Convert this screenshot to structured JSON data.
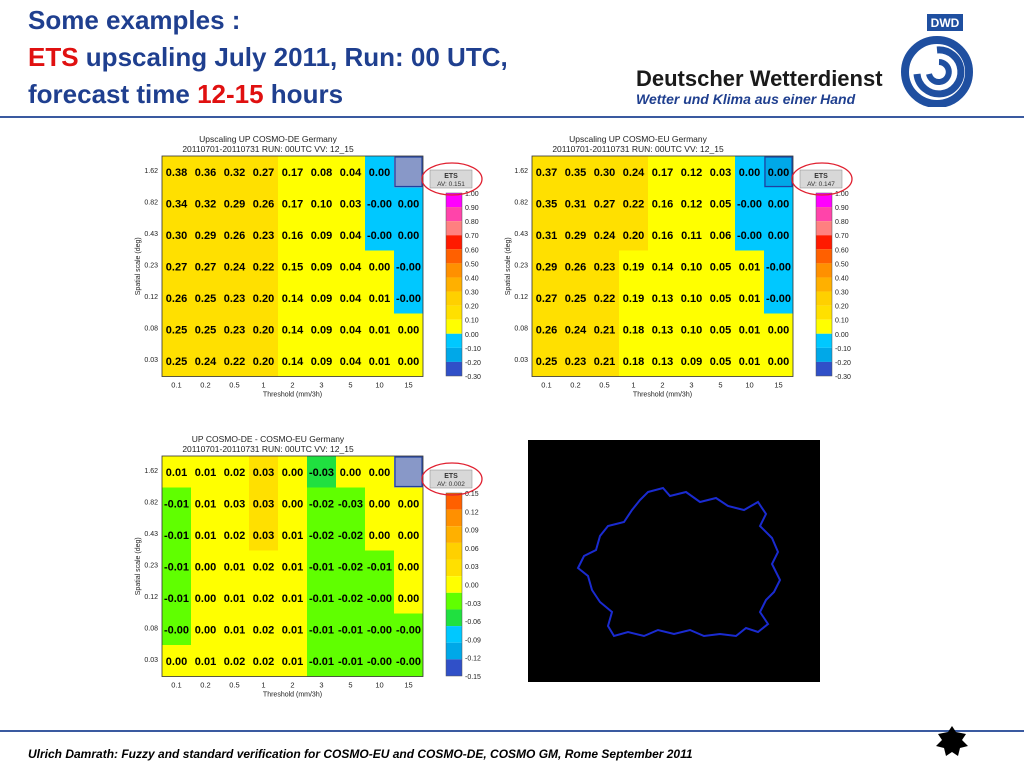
{
  "header": {
    "line1": "Some examples :",
    "line2_red": "ETS",
    "line2_rest": " upscaling July 2011, Run: 00 UTC,",
    "line3_a": "forecast time ",
    "line3_red": "12-15",
    "line3_b": " hours"
  },
  "logo": {
    "badge": "DWD",
    "name": "Deutscher Wetterdienst",
    "slogan": "Wetter und Klima aus einer Hand",
    "accent": "#1f4fa0"
  },
  "footer": {
    "text": "Ulrich Damrath: Fuzzy and standard verification for COSMO-EU and COSMO-DE, COSMO GM, Rome September 2011"
  },
  "colors": {
    "c1": "#ff00ff",
    "c2": "#ff44aa",
    "c3": "#ff8080",
    "c4": "#ff1a00",
    "c5": "#ff6000",
    "c6": "#ff9000",
    "c7": "#ffb000",
    "c8": "#ffd000",
    "c9": "#ffe000",
    "c10": "#ffff00",
    "c11": "#00c8ff",
    "c12": "#00a8e8",
    "c13": "#3050c8",
    "g1": "#60ff00",
    "g2": "#20e040",
    "grey_box": "#8898c8"
  },
  "chart_data": [
    {
      "type": "heatmap",
      "title": "Upscaling UP COSMO-DE Germany",
      "subtitle": "20110701-20110731 RUN: 00UTC VV: 12_15",
      "xlabel": "Threshold (mm/3h)",
      "ylabel": "Spatial scale (deg)",
      "x": [
        "0.1",
        "0.2",
        "0.5",
        "1",
        "2",
        "3",
        "5",
        "10",
        "15"
      ],
      "y": [
        "1.62",
        "0.82",
        "0.43",
        "0.23",
        "0.12",
        "0.08",
        "0.03"
      ],
      "values": [
        [
          0.38,
          0.36,
          0.32,
          0.27,
          0.17,
          0.08,
          0.04,
          0.0,
          null
        ],
        [
          0.34,
          0.32,
          0.29,
          0.26,
          0.17,
          0.1,
          0.03,
          -0.0,
          0.0
        ],
        [
          0.3,
          0.29,
          0.26,
          0.23,
          0.16,
          0.09,
          0.04,
          -0.0,
          0.0
        ],
        [
          0.27,
          0.27,
          0.24,
          0.22,
          0.15,
          0.09,
          0.04,
          0.0,
          -0.0
        ],
        [
          0.26,
          0.25,
          0.23,
          0.2,
          0.14,
          0.09,
          0.04,
          0.01,
          -0.0
        ],
        [
          0.25,
          0.25,
          0.23,
          0.2,
          0.14,
          0.09,
          0.04,
          0.01,
          0.0
        ],
        [
          0.25,
          0.24,
          0.22,
          0.2,
          0.14,
          0.09,
          0.04,
          0.01,
          0.0
        ]
      ],
      "labels": [
        [
          "0.38",
          "0.36",
          "0.32",
          "0.27",
          "0.17",
          "0.08",
          "0.04",
          "0.00",
          ""
        ],
        [
          "0.34",
          "0.32",
          "0.29",
          "0.26",
          "0.17",
          "0.10",
          "0.03",
          "-0.00",
          "0.00"
        ],
        [
          "0.30",
          "0.29",
          "0.26",
          "0.23",
          "0.16",
          "0.09",
          "0.04",
          "-0.00",
          "0.00"
        ],
        [
          "0.27",
          "0.27",
          "0.24",
          "0.22",
          "0.15",
          "0.09",
          "0.04",
          "0.00",
          "-0.00"
        ],
        [
          "0.26",
          "0.25",
          "0.23",
          "0.20",
          "0.14",
          "0.09",
          "0.04",
          "0.01",
          "-0.00"
        ],
        [
          "0.25",
          "0.25",
          "0.23",
          "0.20",
          "0.14",
          "0.09",
          "0.04",
          "0.01",
          "0.00"
        ],
        [
          "0.25",
          "0.24",
          "0.22",
          "0.20",
          "0.14",
          "0.09",
          "0.04",
          "0.01",
          "0.00"
        ]
      ],
      "cellColors": [
        [
          "c9",
          "c9",
          "c9",
          "c9",
          "c10",
          "c10",
          "c10",
          "c11",
          "grey"
        ],
        [
          "c9",
          "c9",
          "c9",
          "c9",
          "c10",
          "c10",
          "c10",
          "c11",
          "c11"
        ],
        [
          "c9",
          "c9",
          "c9",
          "c9",
          "c10",
          "c10",
          "c10",
          "c11",
          "c11"
        ],
        [
          "c9",
          "c9",
          "c9",
          "c9",
          "c10",
          "c10",
          "c10",
          "c10",
          "c11"
        ],
        [
          "c9",
          "c9",
          "c9",
          "c9",
          "c10",
          "c10",
          "c10",
          "c10",
          "c11"
        ],
        [
          "c9",
          "c9",
          "c9",
          "c9",
          "c10",
          "c10",
          "c10",
          "c10",
          "c10"
        ],
        [
          "c9",
          "c9",
          "c9",
          "c9",
          "c10",
          "c10",
          "c10",
          "c10",
          "c10"
        ]
      ],
      "colorbar": {
        "ticks": [
          "1.00",
          "0.90",
          "0.80",
          "0.70",
          "0.60",
          "0.50",
          "0.40",
          "0.30",
          "0.20",
          "0.10",
          "0.00",
          "-0.10",
          "-0.20",
          "-0.30"
        ],
        "colors": [
          "c1",
          "c2",
          "c3",
          "c4",
          "c5",
          "c6",
          "c7",
          "c8",
          "c9",
          "c10",
          "c11",
          "c12",
          "c13"
        ]
      },
      "badge": {
        "label": "ETS",
        "value": "AV: 0.151"
      }
    },
    {
      "type": "heatmap",
      "title": "Upscaling UP COSMO-EU Germany",
      "subtitle": "20110701-20110731 RUN: 00UTC VV: 12_15",
      "xlabel": "Threshold (mm/3h)",
      "ylabel": "Spatial scale (deg)",
      "x": [
        "0.1",
        "0.2",
        "0.5",
        "1",
        "2",
        "3",
        "5",
        "10",
        "15"
      ],
      "y": [
        "1.62",
        "0.82",
        "0.43",
        "0.23",
        "0.12",
        "0.08",
        "0.03"
      ],
      "values": [
        [
          0.37,
          0.35,
          0.3,
          0.24,
          0.17,
          0.12,
          0.03,
          0.0,
          0.0
        ],
        [
          0.35,
          0.31,
          0.27,
          0.22,
          0.16,
          0.12,
          0.05,
          -0.0,
          0.0
        ],
        [
          0.31,
          0.29,
          0.24,
          0.2,
          0.16,
          0.11,
          0.06,
          -0.0,
          0.0
        ],
        [
          0.29,
          0.26,
          0.23,
          0.19,
          0.14,
          0.1,
          0.05,
          0.01,
          -0.0
        ],
        [
          0.27,
          0.25,
          0.22,
          0.19,
          0.13,
          0.1,
          0.05,
          0.01,
          -0.0
        ],
        [
          0.26,
          0.24,
          0.21,
          0.18,
          0.13,
          0.1,
          0.05,
          0.01,
          0.0
        ],
        [
          0.25,
          0.23,
          0.21,
          0.18,
          0.13,
          0.09,
          0.05,
          0.01,
          0.0
        ]
      ],
      "labels": [
        [
          "0.37",
          "0.35",
          "0.30",
          "0.24",
          "0.17",
          "0.12",
          "0.03",
          "0.00",
          "0.00"
        ],
        [
          "0.35",
          "0.31",
          "0.27",
          "0.22",
          "0.16",
          "0.12",
          "0.05",
          "-0.00",
          "0.00"
        ],
        [
          "0.31",
          "0.29",
          "0.24",
          "0.20",
          "0.16",
          "0.11",
          "0.06",
          "-0.00",
          "0.00"
        ],
        [
          "0.29",
          "0.26",
          "0.23",
          "0.19",
          "0.14",
          "0.10",
          "0.05",
          "0.01",
          "-0.00"
        ],
        [
          "0.27",
          "0.25",
          "0.22",
          "0.19",
          "0.13",
          "0.10",
          "0.05",
          "0.01",
          "-0.00"
        ],
        [
          "0.26",
          "0.24",
          "0.21",
          "0.18",
          "0.13",
          "0.10",
          "0.05",
          "0.01",
          "0.00"
        ],
        [
          "0.25",
          "0.23",
          "0.21",
          "0.18",
          "0.13",
          "0.09",
          "0.05",
          "0.01",
          "0.00"
        ]
      ],
      "cellColors": [
        [
          "c9",
          "c9",
          "c9",
          "c9",
          "c10",
          "c10",
          "c10",
          "c11",
          "c12"
        ],
        [
          "c9",
          "c9",
          "c9",
          "c9",
          "c10",
          "c10",
          "c10",
          "c11",
          "c11"
        ],
        [
          "c9",
          "c9",
          "c9",
          "c9",
          "c10",
          "c10",
          "c10",
          "c11",
          "c11"
        ],
        [
          "c9",
          "c9",
          "c9",
          "c10",
          "c10",
          "c10",
          "c10",
          "c10",
          "c11"
        ],
        [
          "c9",
          "c9",
          "c9",
          "c10",
          "c10",
          "c10",
          "c10",
          "c10",
          "c11"
        ],
        [
          "c9",
          "c9",
          "c9",
          "c10",
          "c10",
          "c10",
          "c10",
          "c10",
          "c10"
        ],
        [
          "c9",
          "c9",
          "c9",
          "c10",
          "c10",
          "c10",
          "c10",
          "c10",
          "c10"
        ]
      ],
      "colorbar": {
        "ticks": [
          "1.00",
          "0.90",
          "0.80",
          "0.70",
          "0.60",
          "0.50",
          "0.40",
          "0.30",
          "0.20",
          "0.10",
          "0.00",
          "-0.10",
          "-0.20",
          "-0.30"
        ],
        "colors": [
          "c1",
          "c2",
          "c3",
          "c4",
          "c5",
          "c6",
          "c7",
          "c8",
          "c9",
          "c10",
          "c11",
          "c12",
          "c13"
        ]
      },
      "badge": {
        "label": "ETS",
        "value": "AV: 0.147"
      }
    },
    {
      "type": "heatmap",
      "title": "UP COSMO-DE - COSMO-EU Germany",
      "subtitle": "20110701-20110731 RUN: 00UTC VV: 12_15",
      "xlabel": "Threshold (mm/3h)",
      "ylabel": "Spatial scale (deg)",
      "x": [
        "0.1",
        "0.2",
        "0.5",
        "1",
        "2",
        "3",
        "5",
        "10",
        "15"
      ],
      "y": [
        "1.62",
        "0.82",
        "0.43",
        "0.23",
        "0.12",
        "0.08",
        "0.03"
      ],
      "values": [
        [
          0.01,
          0.01,
          0.02,
          0.03,
          0.0,
          -0.03,
          0.0,
          0.0,
          null
        ],
        [
          -0.01,
          0.01,
          0.03,
          0.03,
          0.0,
          -0.02,
          -0.03,
          0.0,
          0.0
        ],
        [
          -0.01,
          0.01,
          0.02,
          0.03,
          0.01,
          -0.02,
          -0.02,
          0.0,
          0.0
        ],
        [
          -0.01,
          0.0,
          0.01,
          0.02,
          0.01,
          -0.01,
          -0.02,
          -0.01,
          0.0
        ],
        [
          -0.01,
          0.0,
          0.01,
          0.02,
          0.01,
          -0.01,
          -0.02,
          -0.0,
          0.0
        ],
        [
          -0.0,
          0.0,
          0.01,
          0.02,
          0.01,
          -0.01,
          -0.01,
          -0.0,
          -0.0
        ],
        [
          0.0,
          0.01,
          0.02,
          0.02,
          0.01,
          -0.01,
          -0.01,
          -0.0,
          -0.0
        ]
      ],
      "labels": [
        [
          "0.01",
          "0.01",
          "0.02",
          "0.03",
          "0.00",
          "-0.03",
          "0.00",
          "0.00",
          ""
        ],
        [
          "-0.01",
          "0.01",
          "0.03",
          "0.03",
          "0.00",
          "-0.02",
          "-0.03",
          "0.00",
          "0.00"
        ],
        [
          "-0.01",
          "0.01",
          "0.02",
          "0.03",
          "0.01",
          "-0.02",
          "-0.02",
          "0.00",
          "0.00"
        ],
        [
          "-0.01",
          "0.00",
          "0.01",
          "0.02",
          "0.01",
          "-0.01",
          "-0.02",
          "-0.01",
          "0.00"
        ],
        [
          "-0.01",
          "0.00",
          "0.01",
          "0.02",
          "0.01",
          "-0.01",
          "-0.02",
          "-0.00",
          "0.00"
        ],
        [
          "-0.00",
          "0.00",
          "0.01",
          "0.02",
          "0.01",
          "-0.01",
          "-0.01",
          "-0.00",
          "-0.00"
        ],
        [
          "0.00",
          "0.01",
          "0.02",
          "0.02",
          "0.01",
          "-0.01",
          "-0.01",
          "-0.00",
          "-0.00"
        ]
      ],
      "cellColors": [
        [
          "c10",
          "c10",
          "c10",
          "c9",
          "c10",
          "g2",
          "c10",
          "c10",
          "grey"
        ],
        [
          "g1",
          "c10",
          "c10",
          "c9",
          "c10",
          "g1",
          "g1",
          "c10",
          "c10"
        ],
        [
          "g1",
          "c10",
          "c10",
          "c9",
          "c10",
          "g1",
          "g1",
          "c10",
          "c10"
        ],
        [
          "g1",
          "c10",
          "c10",
          "c10",
          "c10",
          "g1",
          "g1",
          "g1",
          "c10"
        ],
        [
          "g1",
          "c10",
          "c10",
          "c10",
          "c10",
          "g1",
          "g1",
          "g1",
          "c10"
        ],
        [
          "g1",
          "c10",
          "c10",
          "c10",
          "c10",
          "g1",
          "g1",
          "g1",
          "g1"
        ],
        [
          "c10",
          "c10",
          "c10",
          "c10",
          "c10",
          "g1",
          "g1",
          "g1",
          "g1"
        ]
      ],
      "colorbar": {
        "ticks": [
          "0.15",
          "0.12",
          "0.09",
          "0.06",
          "0.03",
          "0.00",
          "-0.03",
          "-0.06",
          "-0.09",
          "-0.12",
          "-0.15"
        ],
        "colors": [
          "c5",
          "c6",
          "c7",
          "c8",
          "c9",
          "c10",
          "g1",
          "g2",
          "c11",
          "c12",
          "c13"
        ]
      },
      "badge": {
        "label": "ETS",
        "value": "AV: 0.002"
      }
    }
  ]
}
